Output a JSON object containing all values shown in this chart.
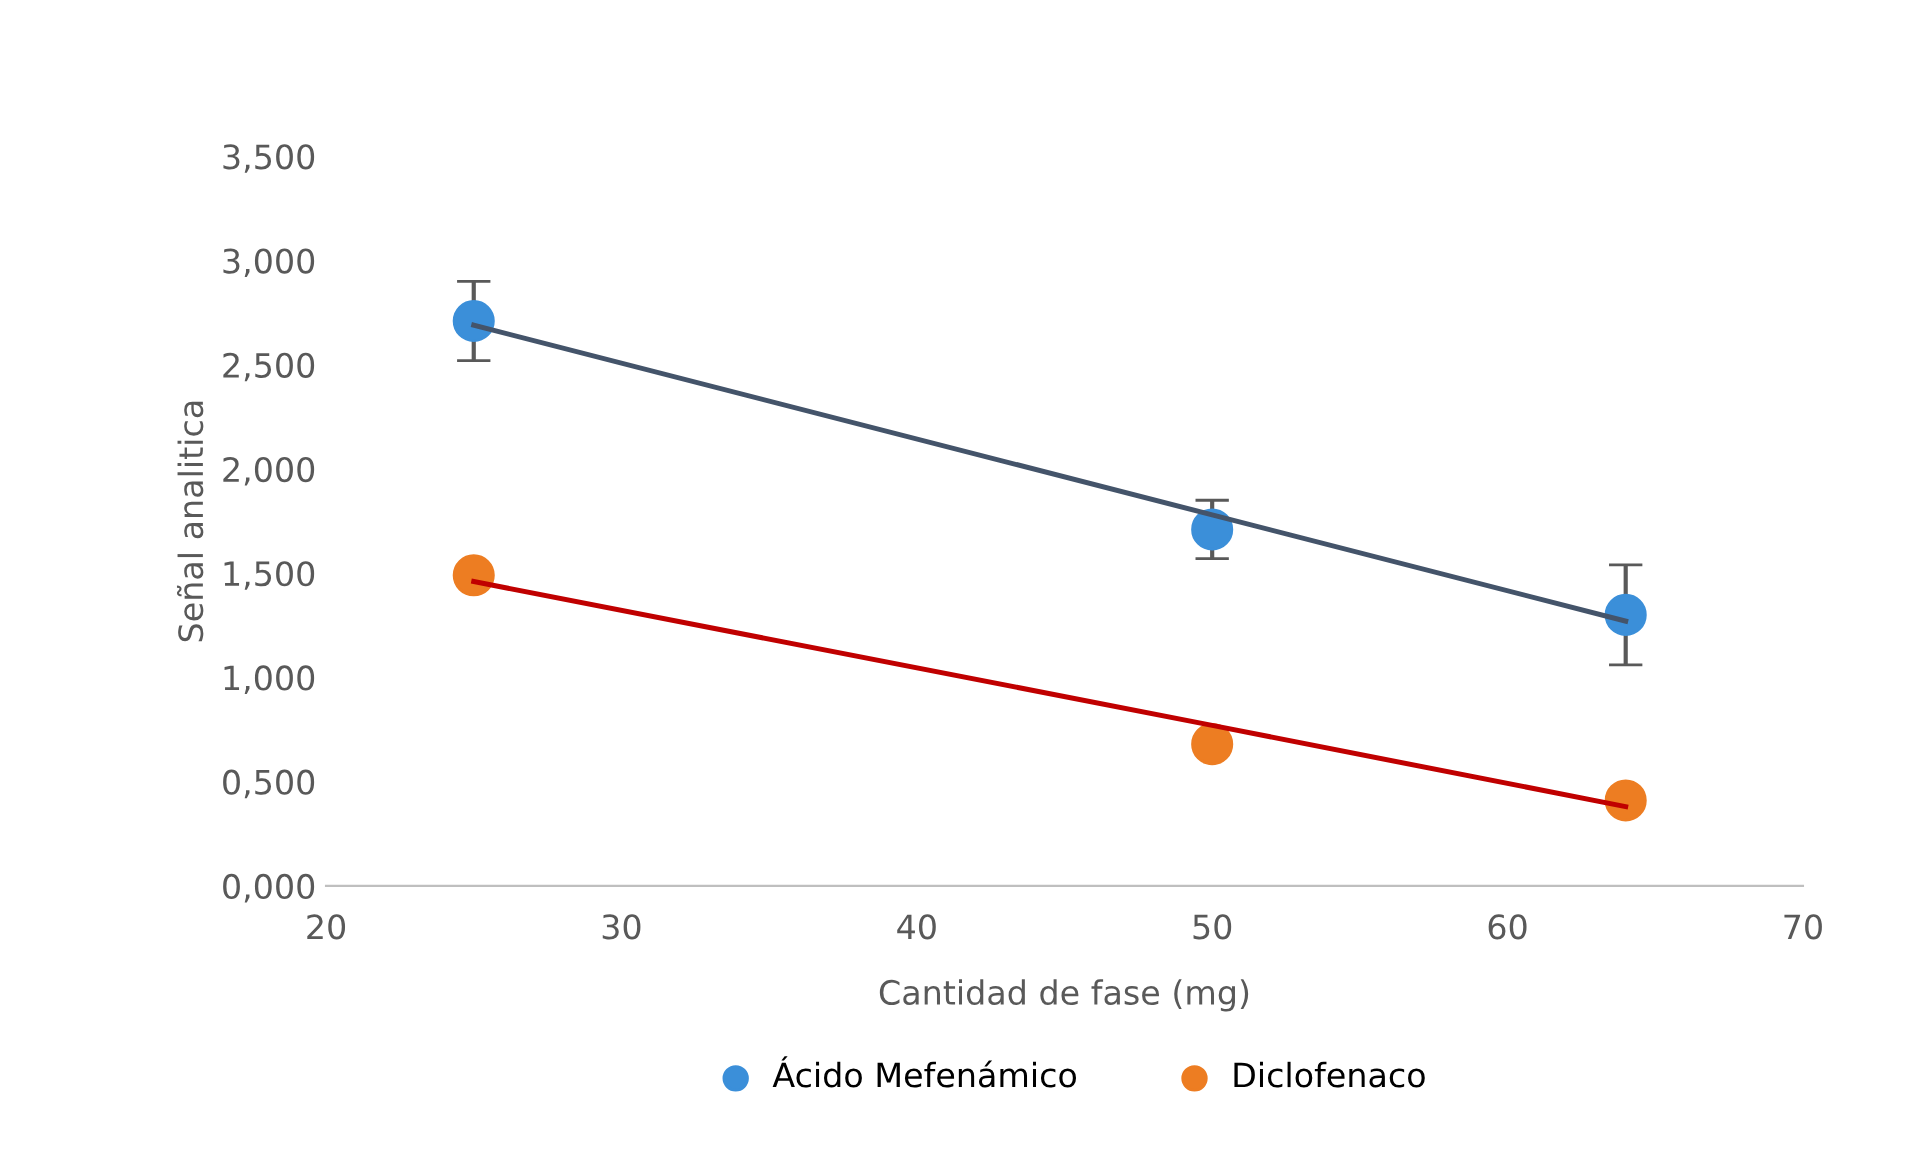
{
  "chart_data": {
    "type": "scatter",
    "xlabel": "Cantidad de fase (mg)",
    "ylabel": "Señal analitica",
    "x": [
      25,
      50,
      64
    ],
    "series": [
      {
        "name": "Ácido Mefenámico",
        "color": "#3b8fd9",
        "values": [
          2.71,
          1.71,
          1.3
        ],
        "marker": "circle",
        "errors": [
          0.19,
          0.14,
          0.24
        ]
      },
      {
        "name": "Diclofenaco",
        "color": "#ed7d22",
        "values": [
          1.49,
          0.68,
          0.41
        ],
        "marker": "circle"
      },
      {
        "type": "line",
        "color": "#44546a",
        "values": [
          2.69,
          1.78,
          1.27
        ]
      },
      {
        "type": "line",
        "color": "#c00000",
        "values": [
          1.46,
          0.77,
          0.38
        ]
      }
    ],
    "xlim": [
      20,
      70
    ],
    "xticks": [
      20,
      30,
      40,
      50,
      60,
      70
    ],
    "ylim": [
      0,
      3.5
    ],
    "yticks": [
      {
        "value": 0,
        "label": "0,000"
      },
      {
        "value": 0.5,
        "label": "0,500"
      },
      {
        "value": 1.0,
        "label": "1,000"
      },
      {
        "value": 1.5,
        "label": "1,500"
      },
      {
        "value": 2.0,
        "label": "2,000"
      },
      {
        "value": 2.5,
        "label": "2,500"
      },
      {
        "value": 3.0,
        "label": "3,000"
      },
      {
        "value": 3.5,
        "label": "3,500"
      }
    ],
    "grid": false,
    "legend": "bottom"
  }
}
